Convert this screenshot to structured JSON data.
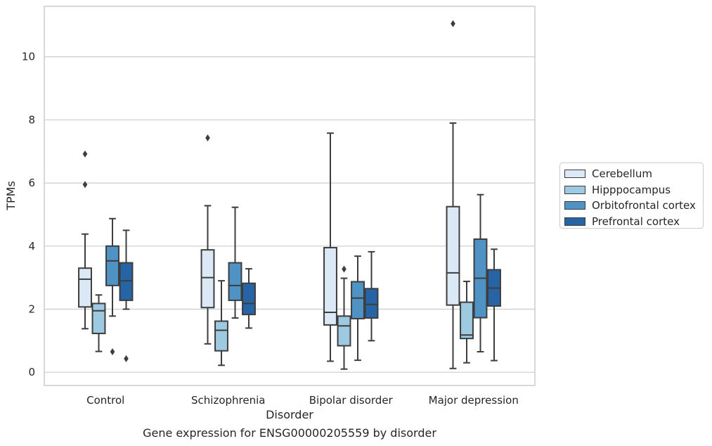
{
  "caption": "Gene expression for ENSG00000205559 by disorder",
  "chart_data": {
    "type": "box",
    "xlabel": "Disorder",
    "ylabel": "TPMs",
    "ylim": [
      -0.42,
      11.6
    ],
    "yticks": [
      0,
      2,
      4,
      6,
      8,
      10
    ],
    "grid": "horizontal",
    "legend_position": "right",
    "categories": [
      "Control",
      "Schizophrenia",
      "Bipolar disorder",
      "Major depression"
    ],
    "series": [
      {
        "name": "Cerebellum",
        "color": "#dbe9f6",
        "boxes": [
          {
            "whisker_low": 1.38,
            "q1": 2.07,
            "median": 2.95,
            "q3": 3.3,
            "whisker_high": 4.38,
            "outliers": [
              5.95,
              6.92
            ]
          },
          {
            "whisker_low": 0.9,
            "q1": 2.05,
            "median": 3.0,
            "q3": 3.88,
            "whisker_high": 5.28,
            "outliers": [
              7.43
            ]
          },
          {
            "whisker_low": 0.35,
            "q1": 1.5,
            "median": 1.9,
            "q3": 3.95,
            "whisker_high": 7.58,
            "outliers": []
          },
          {
            "whisker_low": 0.12,
            "q1": 2.13,
            "median": 3.15,
            "q3": 5.25,
            "whisker_high": 7.9,
            "outliers": [
              11.05
            ]
          }
        ]
      },
      {
        "name": "Hipppocampus",
        "color": "#9ecae1",
        "boxes": [
          {
            "whisker_low": 0.66,
            "q1": 1.23,
            "median": 1.95,
            "q3": 2.18,
            "whisker_high": 2.45,
            "outliers": []
          },
          {
            "whisker_low": 0.22,
            "q1": 0.68,
            "median": 1.33,
            "q3": 1.62,
            "whisker_high": 2.9,
            "outliers": []
          },
          {
            "whisker_low": 0.1,
            "q1": 0.84,
            "median": 1.47,
            "q3": 1.78,
            "whisker_high": 2.98,
            "outliers": [
              3.27
            ]
          },
          {
            "whisker_low": 0.3,
            "q1": 1.07,
            "median": 1.18,
            "q3": 2.22,
            "whisker_high": 2.88,
            "outliers": []
          }
        ]
      },
      {
        "name": "Orbitofrontal cortex",
        "color": "#4f93c4",
        "boxes": [
          {
            "whisker_low": 1.78,
            "q1": 2.75,
            "median": 3.53,
            "q3": 4.0,
            "whisker_high": 4.87,
            "outliers": [
              0.65
            ]
          },
          {
            "whisker_low": 1.72,
            "q1": 2.28,
            "median": 2.75,
            "q3": 3.47,
            "whisker_high": 5.23,
            "outliers": []
          },
          {
            "whisker_low": 0.38,
            "q1": 1.7,
            "median": 2.35,
            "q3": 2.87,
            "whisker_high": 3.68,
            "outliers": []
          },
          {
            "whisker_low": 0.65,
            "q1": 1.73,
            "median": 2.98,
            "q3": 4.22,
            "whisker_high": 5.63,
            "outliers": []
          }
        ]
      },
      {
        "name": "Prefrontal cortex",
        "color": "#2664a6",
        "boxes": [
          {
            "whisker_low": 2.0,
            "q1": 2.28,
            "median": 2.9,
            "q3": 3.47,
            "whisker_high": 4.5,
            "outliers": [
              0.43
            ]
          },
          {
            "whisker_low": 1.4,
            "q1": 1.83,
            "median": 2.18,
            "q3": 2.82,
            "whisker_high": 3.28,
            "outliers": []
          },
          {
            "whisker_low": 1.0,
            "q1": 1.72,
            "median": 2.15,
            "q3": 2.65,
            "whisker_high": 3.82,
            "outliers": []
          },
          {
            "whisker_low": 0.37,
            "q1": 2.1,
            "median": 2.67,
            "q3": 3.25,
            "whisker_high": 3.9,
            "outliers": []
          }
        ]
      }
    ]
  }
}
